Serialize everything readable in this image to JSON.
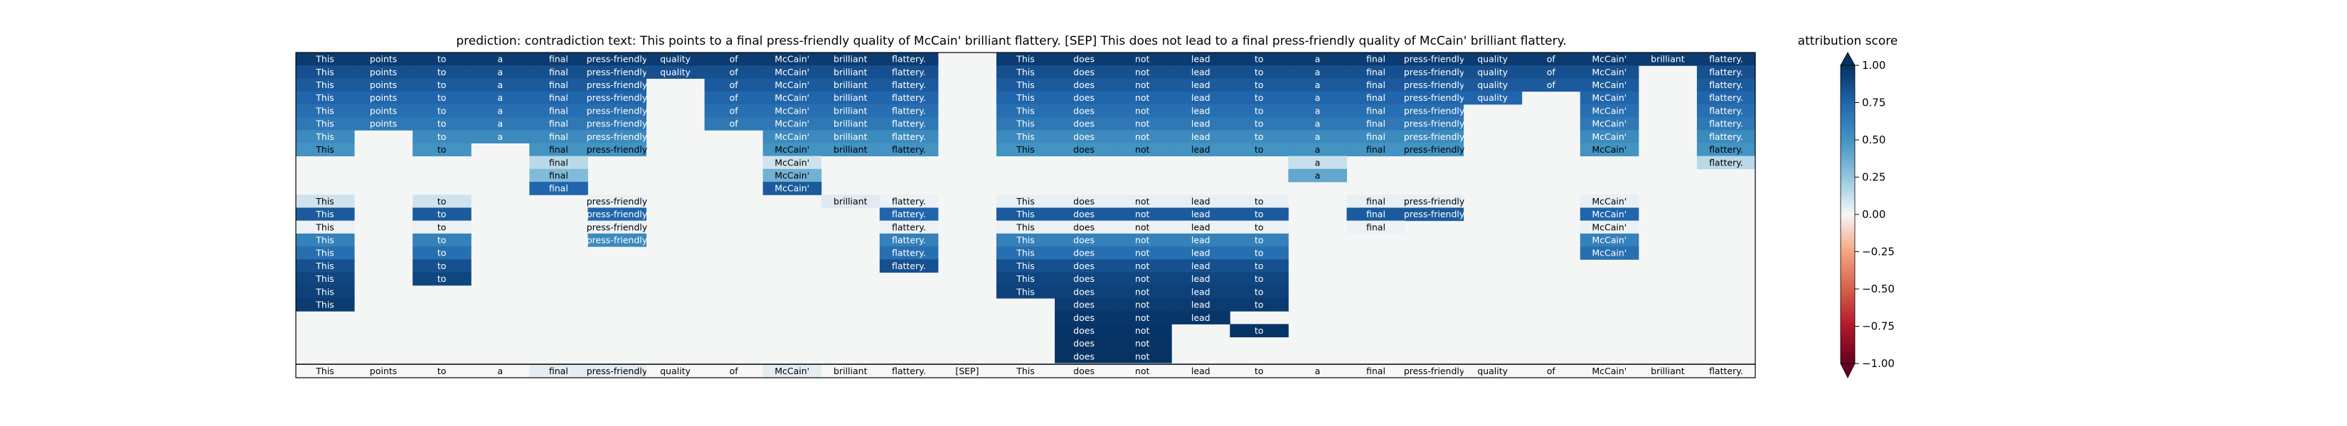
{
  "chart_data": {
    "type": "heatmap",
    "title": "prediction:  contradiction     text:  This points to a final press-friendly quality of McCain' brilliant flattery. [SEP] This does not lead to a final press-friendly quality of McCain' brilliant flattery.",
    "tokens": [
      "This",
      "points",
      "to",
      "a",
      "final",
      "press-friendly",
      "quality",
      "of",
      "McCain'",
      "brilliant",
      "flattery.",
      "[SEP]",
      "This",
      "does",
      "not",
      "lead",
      "to",
      "a",
      "final",
      "press-friendly",
      "quality",
      "of",
      "McCain'",
      "brilliant",
      "flattery."
    ],
    "bottom_row_values": [
      0,
      0,
      0,
      0,
      0.05,
      0.05,
      0,
      0,
      0.05,
      0,
      0,
      0,
      0,
      0,
      0,
      0,
      0,
      0,
      0,
      0,
      0,
      0,
      0,
      0,
      0
    ],
    "rows": [
      [
        0.95,
        0.95,
        0.95,
        0.95,
        0.95,
        0.95,
        0.95,
        0.95,
        0.95,
        0.95,
        0.95,
        0,
        0.95,
        0.95,
        0.95,
        0.95,
        0.95,
        0.95,
        0.95,
        0.95,
        0.95,
        0.95,
        0.95,
        0.95,
        0.95
      ],
      [
        0.85,
        0.85,
        0.85,
        0.85,
        0.85,
        0.85,
        0.85,
        0.85,
        0.85,
        0.85,
        0.85,
        0,
        0.85,
        0.85,
        0.85,
        0.85,
        0.85,
        0.85,
        0.85,
        0.85,
        0.85,
        0.85,
        0.85,
        0,
        0.85
      ],
      [
        0.8,
        0.8,
        0.8,
        0.8,
        0.8,
        0.8,
        0,
        0.8,
        0.8,
        0.8,
        0.8,
        0,
        0.8,
        0.8,
        0.8,
        0.8,
        0.8,
        0.8,
        0.8,
        0.8,
        0.8,
        0.8,
        0.8,
        0,
        0.8
      ],
      [
        0.75,
        0.75,
        0.75,
        0.75,
        0.75,
        0.75,
        0,
        0.75,
        0.75,
        0.75,
        0.75,
        0,
        0.75,
        0.75,
        0.75,
        0.75,
        0.75,
        0.75,
        0.75,
        0.75,
        0.75,
        0,
        0.75,
        0,
        0.75
      ],
      [
        0.7,
        0.7,
        0.7,
        0.7,
        0.7,
        0.7,
        0,
        0.7,
        0.7,
        0.7,
        0.7,
        0,
        0.7,
        0.7,
        0.7,
        0.7,
        0.7,
        0.7,
        0.7,
        0.7,
        0,
        0,
        0.7,
        0,
        0.7
      ],
      [
        0.65,
        0.65,
        0.65,
        0.65,
        0.65,
        0.65,
        0,
        0.65,
        0.65,
        0.65,
        0.65,
        0,
        0.65,
        0.65,
        0.65,
        0.65,
        0.65,
        0.65,
        0.65,
        0.65,
        0,
        0,
        0.65,
        0,
        0.65
      ],
      [
        0.55,
        0,
        0.55,
        0.55,
        0.55,
        0.55,
        0,
        0,
        0.55,
        0.55,
        0.55,
        0,
        0.55,
        0.55,
        0.55,
        0.55,
        0.55,
        0.55,
        0.55,
        0.55,
        0,
        0,
        0.55,
        0,
        0.55
      ],
      [
        0.5,
        0,
        0.5,
        0,
        0.5,
        0.5,
        0,
        0,
        0.5,
        0.5,
        0.5,
        0,
        0.5,
        0.5,
        0.5,
        0.5,
        0.5,
        0.5,
        0.5,
        0.5,
        0,
        0,
        0.5,
        0,
        0.5
      ],
      [
        0,
        0,
        0,
        0,
        0.15,
        0,
        0,
        0,
        0.1,
        0,
        0,
        0,
        0,
        0,
        0,
        0,
        0,
        0.12,
        0,
        0,
        0,
        0,
        0,
        0,
        0.15
      ],
      [
        0,
        0,
        0,
        0,
        0.3,
        0,
        0,
        0,
        0.35,
        0,
        0,
        0,
        0,
        0,
        0,
        0,
        0,
        0.4,
        0,
        0,
        0,
        0,
        0,
        0,
        0
      ],
      [
        0,
        0,
        0,
        0,
        0.75,
        0,
        0,
        0,
        0.8,
        0,
        0,
        0,
        0,
        0,
        0,
        0,
        0,
        0,
        0,
        0,
        0,
        0,
        0,
        0,
        0
      ],
      [
        0.1,
        0,
        0.1,
        0,
        0,
        0.03,
        0,
        0,
        0,
        0.06,
        0.03,
        0,
        0.04,
        0.04,
        0.04,
        0.04,
        0.04,
        0,
        0.04,
        0.04,
        0,
        0,
        0.04,
        0,
        0
      ],
      [
        0.8,
        0,
        0.8,
        0,
        0,
        0.75,
        0,
        0,
        0,
        0,
        0.75,
        0,
        0.8,
        0.8,
        0.8,
        0.8,
        0.8,
        0,
        0.8,
        0.8,
        0,
        0,
        0.75,
        0,
        0
      ],
      [
        0.03,
        0,
        0.03,
        0,
        0,
        0.03,
        0,
        0,
        0,
        0,
        0.03,
        0,
        0.03,
        0.03,
        0.03,
        0.03,
        0.03,
        0,
        0.03,
        0,
        0,
        0,
        0.03,
        0,
        0
      ],
      [
        0.6,
        0,
        0.6,
        0,
        0,
        0.55,
        0,
        0,
        0,
        0,
        0.6,
        0,
        0.6,
        0.6,
        0.6,
        0.6,
        0.6,
        0,
        0,
        0,
        0,
        0,
        0.6,
        0,
        0
      ],
      [
        0.7,
        0,
        0.7,
        0,
        0,
        0,
        0,
        0,
        0,
        0,
        0.7,
        0,
        0.7,
        0.7,
        0.7,
        0.7,
        0.7,
        0,
        0,
        0,
        0,
        0,
        0.7,
        0,
        0
      ],
      [
        0.85,
        0,
        0.85,
        0,
        0,
        0,
        0,
        0,
        0,
        0,
        0.85,
        0,
        0.85,
        0.85,
        0.85,
        0.85,
        0.85,
        0,
        0,
        0,
        0,
        0,
        0,
        0,
        0
      ],
      [
        0.9,
        0,
        0.9,
        0,
        0,
        0,
        0,
        0,
        0,
        0,
        0,
        0,
        0.9,
        0.9,
        0.9,
        0.9,
        0.9,
        0,
        0,
        0,
        0,
        0,
        0,
        0,
        0
      ],
      [
        0.92,
        0,
        0,
        0,
        0,
        0,
        0,
        0,
        0,
        0,
        0,
        0,
        0.92,
        0.92,
        0.92,
        0.92,
        0.92,
        0,
        0,
        0,
        0,
        0,
        0,
        0,
        0
      ],
      [
        0.95,
        0,
        0,
        0,
        0,
        0,
        0,
        0,
        0,
        0,
        0,
        0,
        0,
        0.95,
        0.95,
        0.95,
        0.95,
        0,
        0,
        0,
        0,
        0,
        0,
        0,
        0
      ],
      [
        0,
        0,
        0,
        0,
        0,
        0,
        0,
        0,
        0,
        0,
        0,
        0,
        0,
        0.97,
        0.97,
        0.97,
        0,
        0,
        0,
        0,
        0,
        0,
        0,
        0,
        0
      ],
      [
        0,
        0,
        0,
        0,
        0,
        0,
        0,
        0,
        0,
        0,
        0,
        0,
        0,
        0.98,
        0.98,
        0,
        0.98,
        0,
        0,
        0,
        0,
        0,
        0,
        0,
        0
      ],
      [
        0,
        0,
        0,
        0,
        0,
        0,
        0,
        0,
        0,
        0,
        0,
        0,
        0,
        0.99,
        0.99,
        0,
        0,
        0,
        0,
        0,
        0,
        0,
        0,
        0,
        0
      ],
      [
        0,
        0,
        0,
        0,
        0,
        0,
        0,
        0,
        0,
        0,
        0,
        0,
        0,
        0.99,
        0.99,
        0,
        0,
        0,
        0,
        0,
        0,
        0,
        0,
        0,
        0
      ]
    ],
    "colorbar": {
      "label": "attribution score",
      "range": [
        -1.0,
        1.0
      ],
      "ticks": [
        "1.00",
        "0.75",
        "0.50",
        "0.25",
        "0.00",
        "−0.25",
        "−0.50",
        "−0.75",
        "−1.00"
      ],
      "colormap": "RdBu"
    }
  }
}
